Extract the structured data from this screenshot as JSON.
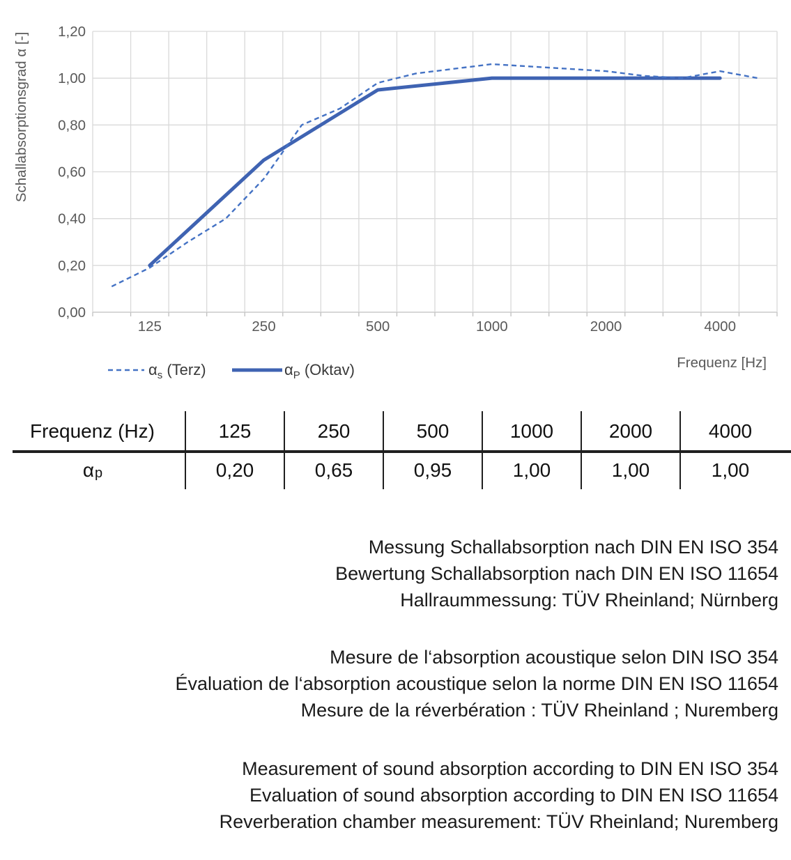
{
  "chart": {
    "y_axis_title": "Schallabsorptionsgrad α [-]",
    "x_axis_title": "Frequenz [Hz]",
    "y_ticks": [
      "0,00",
      "0,20",
      "0,40",
      "0,60",
      "0,80",
      "1,00",
      "1,20"
    ],
    "x_tick_labels": [
      "125",
      "250",
      "500",
      "1000",
      "2000",
      "4000"
    ],
    "legend": {
      "terz": {
        "alpha": "α",
        "sub": "s",
        "rest": " (Terz)"
      },
      "oktav": {
        "alpha": "α",
        "sub": "P",
        "rest": " (Oktav)"
      }
    }
  },
  "chart_data": {
    "type": "line",
    "x_scale": "log-third-octave-categories",
    "categories": [
      100,
      125,
      160,
      200,
      250,
      315,
      400,
      500,
      630,
      800,
      1000,
      1250,
      1600,
      2000,
      2500,
      3150,
      4000,
      5000
    ],
    "series": [
      {
        "name": "αs (Terz)",
        "style": "dashed",
        "color": "#4472C4",
        "x": [
          100,
          125,
          160,
          200,
          250,
          315,
          400,
          500,
          630,
          800,
          1000,
          1250,
          1600,
          2000,
          2500,
          3150,
          4000,
          5000
        ],
        "values": [
          0.11,
          0.19,
          0.3,
          0.4,
          0.57,
          0.8,
          0.87,
          0.98,
          1.02,
          1.04,
          1.06,
          1.05,
          1.04,
          1.03,
          1.01,
          1.0,
          1.03,
          1.0
        ]
      },
      {
        "name": "αP (Oktav)",
        "style": "solid",
        "color": "#3F63B2",
        "x": [
          125,
          250,
          500,
          1000,
          2000,
          4000
        ],
        "values": [
          0.2,
          0.65,
          0.95,
          1.0,
          1.0,
          1.0
        ]
      }
    ],
    "ylim": [
      0,
      1.2
    ],
    "y_tick_step": 0.2,
    "grid": true,
    "legend_position": "bottom-left",
    "colors": {
      "grid": "#D9D9D9",
      "axis_line": "#BFBFBF",
      "axis_text": "#595959"
    }
  },
  "table": {
    "header_label": "Frequenz (Hz)",
    "frequencies": [
      "125",
      "250",
      "500",
      "1000",
      "2000",
      "4000"
    ],
    "row_label": {
      "alpha": "α",
      "sub": "p"
    },
    "alpha_p_values": [
      "0,20",
      "0,65",
      "0,95",
      "1,00",
      "1,00",
      "1,00"
    ]
  },
  "notes": {
    "german": [
      "Messung Schallabsorption nach DIN EN ISO 354",
      "Bewertung Schallabsorption nach DIN EN ISO 11654",
      "Hallraummessung: TÜV Rheinland; Nürnberg"
    ],
    "french": [
      "Mesure de l‘absorption acoustique selon DIN ISO 354",
      "Évaluation de l‘absorption acoustique selon la norme DIN EN ISO 11654",
      "Mesure de la réverbération : TÜV Rheinland ; Nuremberg"
    ],
    "english": [
      "Measurement of sound absorption according to DIN EN ISO 354",
      "Evaluation of sound absorption according to DIN EN ISO 11654",
      "Reverberation chamber measurement: TÜV Rheinland; Nuremberg"
    ]
  }
}
